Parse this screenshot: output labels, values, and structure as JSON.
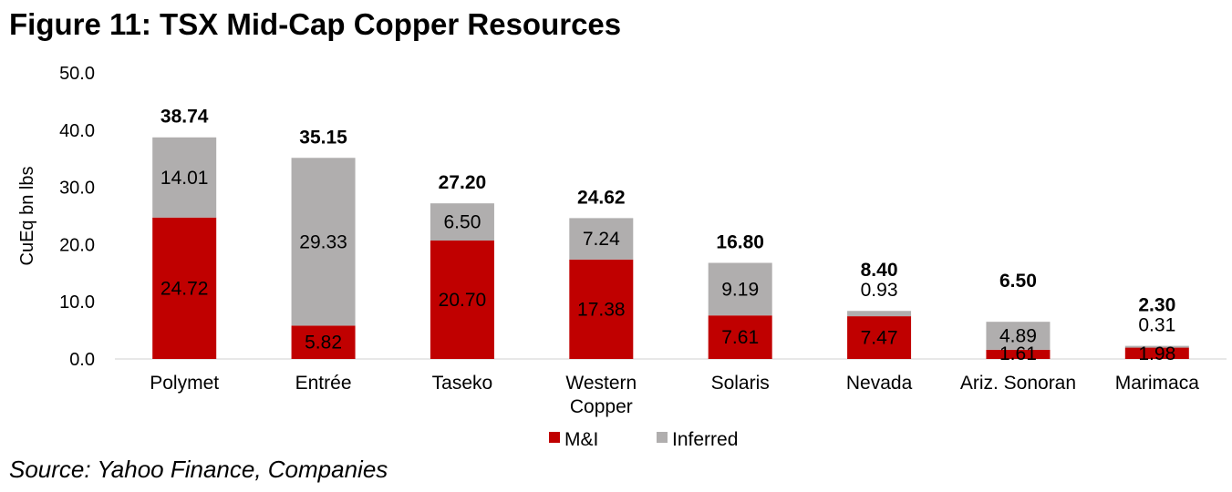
{
  "figure": {
    "title": "Figure 11: TSX Mid-Cap Copper Resources",
    "source": "Source: Yahoo Finance, Companies"
  },
  "colors": {
    "mi": "#c00000",
    "inferred": "#b0aeae"
  },
  "chart_data": {
    "type": "bar",
    "stacked": true,
    "categories": [
      "Polymet",
      "Entrée",
      "Taseko",
      "Western Copper",
      "Solaris",
      "Nevada",
      "Ariz. Sonoran",
      "Marimaca"
    ],
    "category_lines": [
      [
        "Polymet"
      ],
      [
        "Entrée"
      ],
      [
        "Taseko"
      ],
      [
        "Western",
        "Copper"
      ],
      [
        "Solaris"
      ],
      [
        "Nevada"
      ],
      [
        "Ariz. Sonoran"
      ],
      [
        "Marimaca"
      ]
    ],
    "series": [
      {
        "name": "M&I",
        "color": "#c00000",
        "values": [
          24.72,
          5.82,
          20.7,
          17.38,
          7.61,
          7.47,
          1.61,
          1.98
        ],
        "labels": [
          "24.72",
          "5.82",
          "20.70",
          "17.38",
          "7.61",
          "7.47",
          "1.61",
          "1.98"
        ]
      },
      {
        "name": "Inferred",
        "color": "#b0aeae",
        "values": [
          14.01,
          29.33,
          6.5,
          7.24,
          9.19,
          0.93,
          4.89,
          0.31
        ],
        "labels": [
          "14.01",
          "29.33",
          "6.50",
          "7.24",
          "9.19",
          "0.93",
          "4.89",
          "0.31"
        ]
      }
    ],
    "totals": [
      38.74,
      35.15,
      27.2,
      24.62,
      16.8,
      8.4,
      6.5,
      2.3
    ],
    "total_labels": [
      "38.74",
      "35.15",
      "27.20",
      "24.62",
      "16.80",
      "8.40",
      "6.50",
      "2.30"
    ],
    "ylabel": "CuEq bn lbs",
    "ylim": [
      0,
      50
    ],
    "yticks": [
      "0.0",
      "10.0",
      "20.0",
      "30.0",
      "40.0",
      "50.0"
    ],
    "grid": false,
    "legend_position": "bottom-center"
  }
}
